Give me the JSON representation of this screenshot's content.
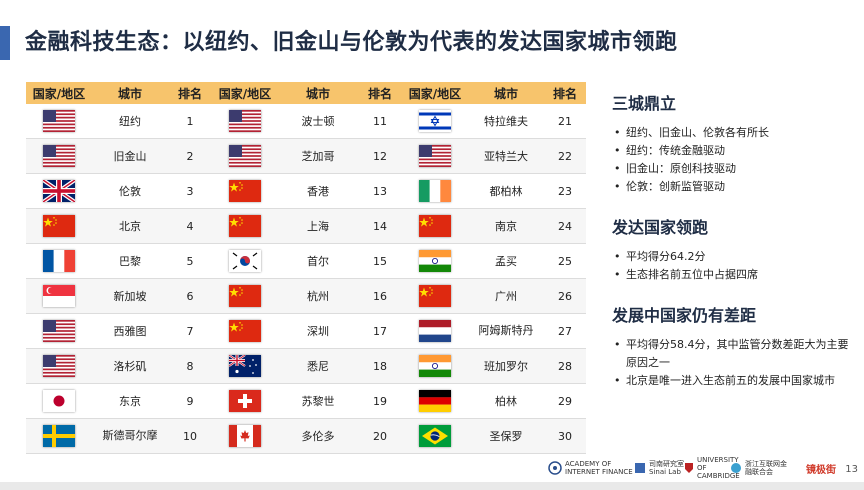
{
  "slide": {
    "title": "金融科技生态：以纽约、旧金山与伦敦为代表的发达国家城市领跑",
    "page_number": "13"
  },
  "table": {
    "headers": [
      "国家/地区",
      "城市",
      "排名",
      "国家/地区",
      "城市",
      "排名",
      "国家/地区",
      "城市",
      "排名"
    ],
    "rows": [
      [
        {
          "flag": "us-flag-icon",
          "city": "纽约",
          "rank": "1"
        },
        {
          "flag": "us-flag-icon",
          "city": "波士顿",
          "rank": "11"
        },
        {
          "flag": "israel-flag-icon",
          "city": "特拉维夫",
          "rank": "21"
        }
      ],
      [
        {
          "flag": "us-flag-icon",
          "city": "旧金山",
          "rank": "2"
        },
        {
          "flag": "us-flag-icon",
          "city": "芝加哥",
          "rank": "12"
        },
        {
          "flag": "us-flag-icon",
          "city": "亚特兰大",
          "rank": "22"
        }
      ],
      [
        {
          "flag": "uk-flag-icon",
          "city": "伦敦",
          "rank": "3"
        },
        {
          "flag": "china-flag-icon",
          "city": "香港",
          "rank": "13"
        },
        {
          "flag": "ireland-flag-icon",
          "city": "都柏林",
          "rank": "23"
        }
      ],
      [
        {
          "flag": "china-flag-icon",
          "city": "北京",
          "rank": "4"
        },
        {
          "flag": "china-flag-icon",
          "city": "上海",
          "rank": "14"
        },
        {
          "flag": "china-flag-icon",
          "city": "南京",
          "rank": "24"
        }
      ],
      [
        {
          "flag": "france-flag-icon",
          "city": "巴黎",
          "rank": "5"
        },
        {
          "flag": "korea-flag-icon",
          "city": "首尔",
          "rank": "15"
        },
        {
          "flag": "india-flag-icon",
          "city": "孟买",
          "rank": "25"
        }
      ],
      [
        {
          "flag": "singapore-flag-icon",
          "city": "新加坡",
          "rank": "6"
        },
        {
          "flag": "china-flag-icon",
          "city": "杭州",
          "rank": "16"
        },
        {
          "flag": "china-flag-icon",
          "city": "广州",
          "rank": "26"
        }
      ],
      [
        {
          "flag": "us-flag-icon",
          "city": "西雅图",
          "rank": "7"
        },
        {
          "flag": "china-flag-icon",
          "city": "深圳",
          "rank": "17"
        },
        {
          "flag": "netherlands-flag-icon",
          "city": "阿姆斯特丹",
          "rank": "27"
        }
      ],
      [
        {
          "flag": "us-flag-icon",
          "city": "洛杉矶",
          "rank": "8"
        },
        {
          "flag": "australia-flag-icon",
          "city": "悉尼",
          "rank": "18"
        },
        {
          "flag": "india-flag-icon",
          "city": "班加罗尔",
          "rank": "28"
        }
      ],
      [
        {
          "flag": "japan-flag-icon",
          "city": "东京",
          "rank": "9"
        },
        {
          "flag": "switzerland-flag-icon",
          "city": "苏黎世",
          "rank": "19"
        },
        {
          "flag": "germany-flag-icon",
          "city": "柏林",
          "rank": "29"
        }
      ],
      [
        {
          "flag": "sweden-flag-icon",
          "city": "斯德哥尔摩",
          "rank": "10"
        },
        {
          "flag": "canada-flag-icon",
          "city": "多伦多",
          "rank": "20"
        },
        {
          "flag": "brazil-flag-icon",
          "city": "圣保罗",
          "rank": "30"
        }
      ]
    ]
  },
  "sidebar": {
    "sections": [
      {
        "heading": "三城鼎立",
        "items": [
          "纽约、旧金山、伦敦各有所长",
          "纽约：传统金融驱动",
          "旧金山：原创科技驱动",
          "伦敦：创新监管驱动"
        ]
      },
      {
        "heading": "发达国家领跑",
        "items": [
          "平均得分64.2分",
          "生态排名前五位中占据四席"
        ]
      },
      {
        "heading": "发展中国家仍有差距",
        "items": [
          "平均得分58.4分，其中监管分数差距大为主要原因之一",
          "北京是唯一进入生态前五的发展中国家城市"
        ]
      }
    ]
  },
  "footer": {
    "logos": [
      {
        "name": "zju-aif-logo",
        "text": "ACADEMY OF INTERNET FINANCE"
      },
      {
        "name": "sinai-lab-logo",
        "text": "司南研究室 Sinai Lab"
      },
      {
        "name": "cambridge-logo",
        "text": "UNIVERSITY OF CAMBRIDGE"
      },
      {
        "name": "zj-association-logo",
        "text": "浙江互联网金融联合会"
      },
      {
        "name": "brand-logo",
        "text": "镜极街"
      }
    ]
  },
  "colors": {
    "header_bg": "#f7c46c",
    "title_bar": "#3a67b0",
    "title_text": "#1f2d45"
  }
}
